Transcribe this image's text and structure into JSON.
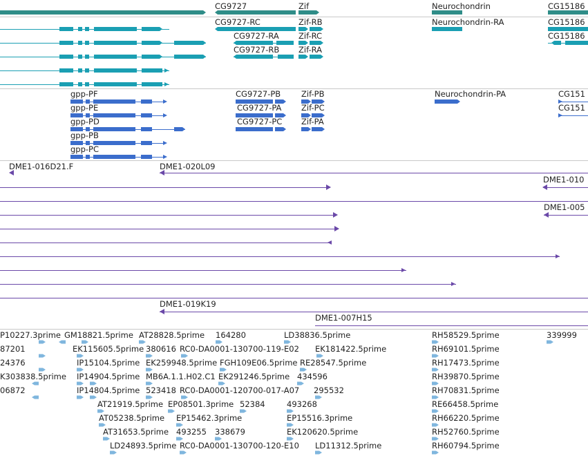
{
  "colors": {
    "gene": "#2f8d88",
    "transcript": "#1a9fb3",
    "protein": "#3b6dcc",
    "clone": "#6a48a8",
    "est": "#7fb6de",
    "separator": "#c8c8c8",
    "text": "#222222"
  },
  "genes": {
    "labels": [
      "CG9727",
      "Zif",
      "Neurochondrin",
      "CG15186"
    ]
  },
  "transcripts": {
    "labels": [
      "CG9727-RC",
      "Zif-RB",
      "Neurochondrin-RA",
      "CG15186",
      "CG9727-RA",
      "Zif-RC",
      "CG15186",
      "CG9727-RB",
      "Zif-RA"
    ]
  },
  "proteins": {
    "labels": [
      "gpp-PF",
      "CG9727-PB",
      "Zif-PB",
      "Neurochondrin-PA",
      "CG151",
      "gpp-PE",
      "CG9727-PA",
      "Zif-PC",
      "CG151",
      "gpp-PD",
      "CG9727-PC",
      "Zif-PA",
      "gpp-PB",
      "gpp-PC"
    ]
  },
  "clones": {
    "labels": [
      "DME1-016D21.F",
      "DME1-020L09",
      "DME1-010",
      "DME1-005",
      "DME1-019K19",
      "DME1-007H15"
    ]
  },
  "ests": {
    "labels": [
      "P10227.3prime",
      "GM18821.5prime",
      "AT28828.5prime",
      "164280",
      "LD38836.5prime",
      "RH58529.5prime",
      "339999",
      "87201",
      "EK115605.5prime",
      "380616",
      "RC0-DA0001-130700-119-E02",
      "EK181422.5prime",
      "RH69101.5prime",
      "24376",
      "IP15104.5prime",
      "EK259948.5prime",
      "FGH109E06.5prime",
      "RE28547.5prime",
      "RH17473.5prime",
      "K303838.5prime",
      "IP14904.5prime",
      "MB6A.1.1.H02.C1",
      "EK291246.5prime",
      "434596",
      "RH39870.5prime",
      "06872",
      "IP14804.5prime",
      "523418",
      "RC0-DA0001-120700-017-A07",
      "295532",
      "RH70831.5prime",
      "AT21919.5prime",
      "EP08501.3prime",
      "52384",
      "493268",
      "RE66458.5prime",
      "AT05238.5prime",
      "EP15462.3prime",
      "EP15516.3prime",
      "RH66220.5prime",
      "AT31653.5prime",
      "493255",
      "338679",
      "EK120620.5prime",
      "RH52760.5prime",
      "LD24893.5prime",
      "RC0-DA0001-130700-120-E10",
      "LD11312.5prime",
      "RH60794.5prime"
    ]
  }
}
